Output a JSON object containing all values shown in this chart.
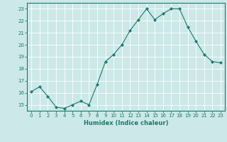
{
  "xlabel": "Humidex (Indice chaleur)",
  "x": [
    0,
    1,
    2,
    3,
    4,
    5,
    6,
    7,
    8,
    9,
    10,
    11,
    12,
    13,
    14,
    15,
    16,
    17,
    18,
    19,
    20,
    21,
    22,
    23
  ],
  "y": [
    16.1,
    16.5,
    15.7,
    14.8,
    14.7,
    15.0,
    15.3,
    15.0,
    16.7,
    18.6,
    19.2,
    20.0,
    21.2,
    22.1,
    23.0,
    22.1,
    22.6,
    23.0,
    23.0,
    21.5,
    20.3,
    19.2,
    18.6,
    18.5
  ],
  "ylim": [
    14.5,
    23.5
  ],
  "xlim": [
    -0.5,
    23.5
  ],
  "yticks": [
    15,
    16,
    17,
    18,
    19,
    20,
    21,
    22,
    23
  ],
  "xticks": [
    0,
    1,
    2,
    3,
    4,
    5,
    6,
    7,
    8,
    9,
    10,
    11,
    12,
    13,
    14,
    15,
    16,
    17,
    18,
    19,
    20,
    21,
    22,
    23
  ],
  "line_color": "#1a7a6e",
  "marker": "D",
  "marker_size": 2.0,
  "bg_color": "#cce8e8",
  "grid_color": "#ffffff",
  "tick_color": "#1a7a6e",
  "label_color": "#1a7a6e",
  "tick_fontsize": 5.0,
  "xlabel_fontsize": 6.0
}
